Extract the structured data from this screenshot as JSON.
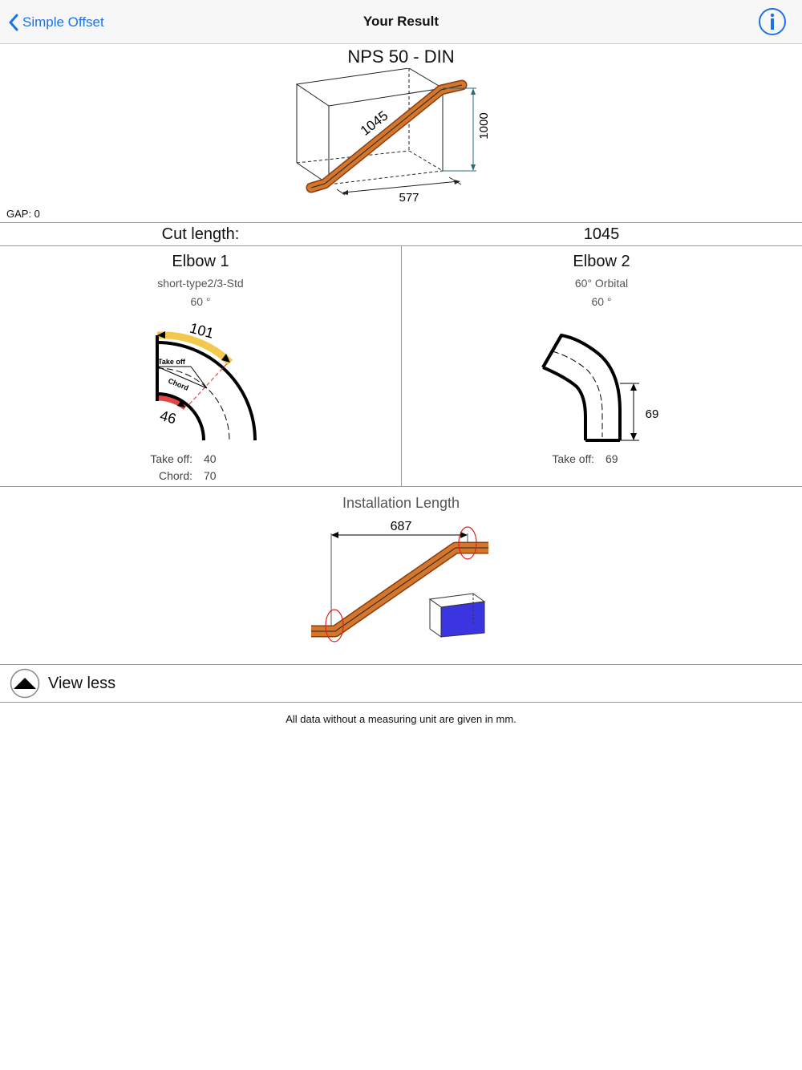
{
  "nav": {
    "back_label": "Simple Offset",
    "title": "Your Result"
  },
  "result": {
    "heading": "NPS 50 - DIN",
    "gap_label": "GAP: 0",
    "diagram": {
      "length_label": "1045",
      "height_label": "1000",
      "width_label": "577"
    }
  },
  "cut": {
    "label": "Cut length:",
    "value": "1045"
  },
  "elbow1": {
    "title": "Elbow 1",
    "type": "short-type2/3-Std",
    "angle": "60 °",
    "outer_arc_label": "101",
    "inner_arc_label": "46",
    "takeoff_diag_label": "Take off",
    "chord_diag_label": "Chord",
    "takeoff_key": "Take off:",
    "takeoff_value": "40",
    "chord_key": "Chord:",
    "chord_value": "70"
  },
  "elbow2": {
    "title": "Elbow 2",
    "type": "60° Orbital",
    "angle": "60 °",
    "dim_label": "69",
    "takeoff_key": "Take off:",
    "takeoff_value": "69"
  },
  "installation": {
    "title": "Installation Length",
    "length_label": "687"
  },
  "view_less_label": "View less",
  "footer_note": "All data without a measuring unit are given in mm.",
  "colors": {
    "accent": "#1a73e8",
    "pipe": "#c8621a",
    "arc_outer": "#f2c94c",
    "arc_inner": "#e04848",
    "box_fill": "#3a35e0"
  }
}
